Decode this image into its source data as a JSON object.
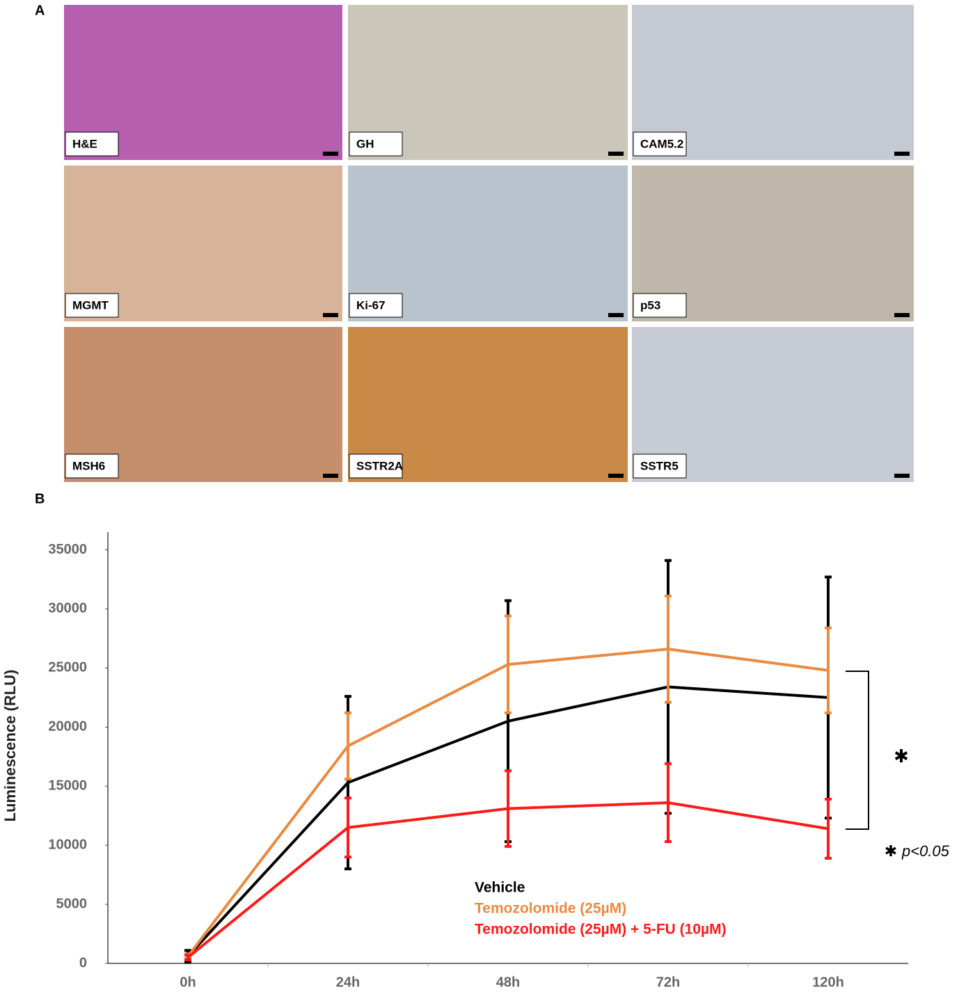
{
  "figure": {
    "panel_a_label": "A",
    "panel_b_label": "B",
    "stains": [
      {
        "label": "H&E",
        "color": "#b65fae"
      },
      {
        "label": "GH",
        "color": "#cbc6ba"
      },
      {
        "label": "CAM5.2",
        "color": "#c4c9d2"
      },
      {
        "label": "MGMT",
        "color": "#d6b399"
      },
      {
        "label": "Ki-67",
        "color": "#b9c3cd"
      },
      {
        "label": "p53",
        "color": "#beb7aa"
      },
      {
        "label": "MSH6",
        "color": "#c58f6c"
      },
      {
        "label": "SSTR2A",
        "color": "#c98a47"
      },
      {
        "label": "SSTR5",
        "color": "#c7cbd4"
      }
    ]
  },
  "chart_data": {
    "type": "line",
    "y_label": "Luminescence (RLU)",
    "categories": [
      "0h",
      "24h",
      "48h",
      "72h",
      "120h"
    ],
    "series": [
      {
        "name": "Vehicle",
        "color": "#000000",
        "values": [
          600,
          15300,
          20500,
          23400,
          22500
        ],
        "errors": [
          500,
          7300,
          10200,
          10700,
          10200
        ]
      },
      {
        "name": "Temozolomide (25µM)",
        "color": "#ea8a3f",
        "values": [
          600,
          18400,
          25300,
          26600,
          24800
        ],
        "errors": [
          200,
          2800,
          4100,
          4500,
          3600
        ]
      },
      {
        "name": "Temozolomide (25µM) + 5-FU (10µM)",
        "color": "#ff1a1a",
        "values": [
          500,
          11500,
          13100,
          13600,
          11400
        ],
        "errors": [
          200,
          2500,
          3200,
          3300,
          2500
        ]
      }
    ],
    "ylim": [
      0,
      36500
    ],
    "yticks": [
      0,
      5000,
      10000,
      15000,
      20000,
      25000,
      30000,
      35000
    ],
    "significance_mark": "✱",
    "significance_note": "p<0.05"
  }
}
